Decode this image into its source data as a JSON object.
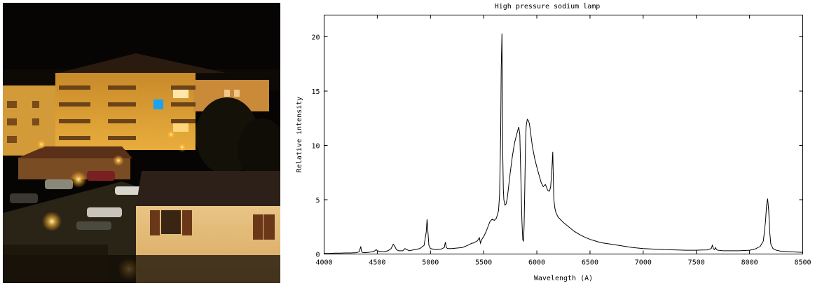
{
  "chart_data": {
    "type": "line",
    "title": "High pressure sodium lamp",
    "xlabel": "Wavelength (A)",
    "ylabel": "Relative intensity",
    "xlim": [
      4000,
      8500
    ],
    "ylim": [
      0,
      22
    ],
    "x_ticks": [
      4000,
      4500,
      5000,
      5500,
      6000,
      6500,
      7000,
      7500,
      8000,
      8500
    ],
    "y_ticks": [
      0,
      5,
      10,
      15,
      20
    ],
    "grid": false,
    "series": [
      {
        "color": "#000000",
        "x": [
          4000,
          4050,
          4100,
          4150,
          4200,
          4250,
          4300,
          4330,
          4345,
          4350,
          4360,
          4380,
          4420,
          4470,
          4490,
          4500,
          4520,
          4560,
          4600,
          4630,
          4650,
          4665,
          4680,
          4700,
          4740,
          4760,
          4800,
          4850,
          4900,
          4940,
          4960,
          4968,
          4975,
          4985,
          5000,
          5050,
          5100,
          5130,
          5140,
          5150,
          5160,
          5200,
          5250,
          5300,
          5350,
          5390,
          5400,
          5420,
          5440,
          5460,
          5470,
          5480,
          5500,
          5520,
          5540,
          5560,
          5580,
          5600,
          5620,
          5640,
          5650,
          5660,
          5665,
          5672,
          5676,
          5680,
          5685,
          5690,
          5700,
          5710,
          5720,
          5730,
          5750,
          5770,
          5790,
          5810,
          5830,
          5840,
          5850,
          5860,
          5868,
          5875,
          5880,
          5885,
          5890,
          5895,
          5900,
          5910,
          5920,
          5930,
          5940,
          5950,
          5960,
          5980,
          6000,
          6020,
          6040,
          6060,
          6080,
          6090,
          6100,
          6110,
          6120,
          6130,
          6140,
          6150,
          6155,
          6160,
          6170,
          6180,
          6200,
          6220,
          6250,
          6300,
          6350,
          6400,
          6450,
          6500,
          6550,
          6600,
          6700,
          6800,
          6900,
          7000,
          7100,
          7200,
          7300,
          7400,
          7500,
          7550,
          7600,
          7640,
          7650,
          7660,
          7670,
          7680,
          7690,
          7700,
          7750,
          7800,
          7900,
          8000,
          8050,
          8100,
          8130,
          8150,
          8160,
          8170,
          8180,
          8190,
          8200,
          8220,
          8250,
          8300,
          8400,
          8500
        ],
        "y": [
          0.05,
          0.05,
          0.08,
          0.08,
          0.1,
          0.1,
          0.12,
          0.2,
          0.7,
          0.3,
          0.15,
          0.12,
          0.15,
          0.25,
          0.4,
          0.3,
          0.25,
          0.2,
          0.3,
          0.5,
          0.9,
          0.7,
          0.4,
          0.3,
          0.3,
          0.5,
          0.3,
          0.4,
          0.5,
          0.8,
          2.0,
          3.2,
          2.2,
          0.8,
          0.5,
          0.4,
          0.45,
          0.6,
          1.1,
          0.6,
          0.5,
          0.5,
          0.55,
          0.6,
          0.8,
          1.0,
          1.0,
          1.1,
          1.2,
          1.5,
          1.0,
          1.3,
          1.6,
          2.0,
          2.5,
          3.0,
          3.2,
          3.1,
          3.3,
          4.0,
          5.5,
          11.0,
          17.0,
          20.3,
          15.0,
          9.0,
          6.0,
          5.0,
          4.5,
          4.6,
          5.0,
          5.8,
          7.5,
          9.0,
          10.2,
          11.0,
          11.7,
          11.0,
          7.0,
          3.0,
          1.3,
          1.2,
          2.5,
          5.0,
          8.0,
          10.5,
          11.8,
          12.4,
          12.3,
          12.0,
          11.3,
          10.5,
          9.8,
          8.8,
          8.0,
          7.3,
          6.6,
          6.2,
          6.4,
          6.2,
          5.9,
          5.8,
          5.8,
          6.2,
          7.5,
          9.4,
          7.0,
          5.0,
          4.2,
          3.8,
          3.4,
          3.2,
          2.9,
          2.5,
          2.1,
          1.8,
          1.55,
          1.35,
          1.2,
          1.05,
          0.9,
          0.75,
          0.6,
          0.5,
          0.45,
          0.4,
          0.38,
          0.35,
          0.35,
          0.37,
          0.38,
          0.5,
          0.8,
          0.5,
          0.4,
          0.6,
          0.4,
          0.35,
          0.3,
          0.3,
          0.3,
          0.35,
          0.45,
          0.7,
          1.2,
          3.0,
          4.5,
          5.1,
          4.0,
          2.0,
          0.9,
          0.5,
          0.35,
          0.25,
          0.2,
          0.15
        ]
      }
    ]
  }
}
